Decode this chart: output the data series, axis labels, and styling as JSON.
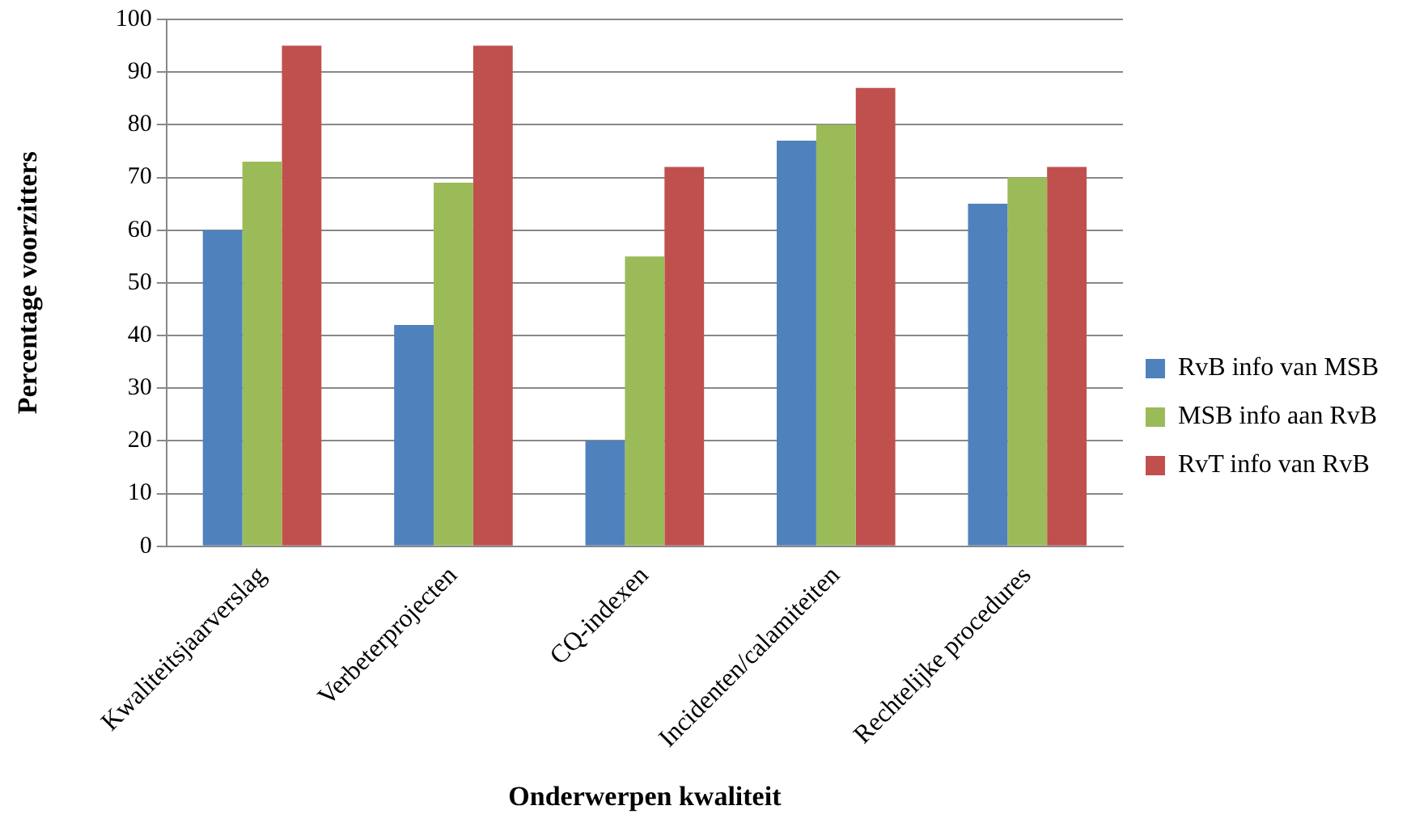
{
  "chart_data": {
    "type": "bar",
    "xlabel": "Onderwerpen kwaliteit",
    "ylabel": "Percentage voorzitters",
    "categories": [
      "Kwaliteitsjaarverslag",
      "Verbeterprojecten",
      "CQ-indexen",
      "Incidenten/calamiteiten",
      "Rechtelijke procedures"
    ],
    "series": [
      {
        "name": "RvB info van MSB",
        "color": "#4f81bd",
        "values": [
          60,
          42,
          20,
          77,
          65
        ]
      },
      {
        "name": "MSB info aan RvB",
        "color": "#9bbb59",
        "values": [
          73,
          69,
          55,
          80,
          70
        ]
      },
      {
        "name": "RvT info van RvB",
        "color": "#c0504d",
        "values": [
          95,
          95,
          72,
          87,
          72
        ]
      }
    ],
    "ylim": [
      0,
      100
    ],
    "yticks": [
      0,
      10,
      20,
      30,
      40,
      50,
      60,
      70,
      80,
      90,
      100
    ],
    "grid": "y",
    "legend": "right"
  }
}
